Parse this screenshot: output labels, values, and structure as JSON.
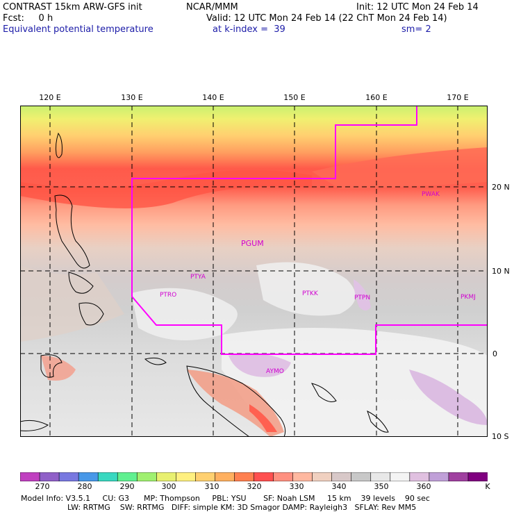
{
  "header": {
    "line1_left": "CONTRAST 15km ARW-GFS init",
    "line1_center": "NCAR/MMM",
    "line1_right": "Init: 12 UTC Mon 24 Feb 14",
    "line2_left": "Fcst:     0 h",
    "line2_right": "Valid: 12 UTC Mon 24 Feb 14 (22 ChT Mon 24 Feb 14)",
    "line3_left": "Equivalent potential temperature",
    "line3_center": "at k-index =  39",
    "line3_right": "sm= 2"
  },
  "map": {
    "longitude_labels": [
      "120 E",
      "130 E",
      "140 E",
      "150 E",
      "160 E",
      "170 E"
    ],
    "latitude_labels": [
      "20 N",
      "10 N",
      "0",
      "10 S"
    ],
    "stations": [
      "PWAK",
      "PGUM",
      "PTYA",
      "PTRO",
      "PTKK",
      "PTPN",
      "PKMJ",
      "AYMO"
    ],
    "outline_color": "#ff00ff"
  },
  "colorbar": {
    "labels": [
      "270",
      "280",
      "290",
      "300",
      "310",
      "320",
      "330",
      "340",
      "350",
      "360"
    ],
    "unit": "K",
    "colors": [
      "#c040c0",
      "#9060c8",
      "#7878e0",
      "#4898e8",
      "#38d8c0",
      "#60f090",
      "#a0f070",
      "#e8f070",
      "#fff080",
      "#ffd070",
      "#ffb060",
      "#ff8050",
      "#ff5050",
      "#ff9080",
      "#ffb8a0",
      "#f0d0c0",
      "#d8c8c8",
      "#c8c8c8",
      "#e8e8e8",
      "#f4f4f4",
      "#e0c0e0",
      "#c0a0d8",
      "#a040a0",
      "#800080"
    ]
  },
  "footer": {
    "line1": "Model Info: V3.5.1     CU: G3      MP: Thompson     PBL: YSU       SF: Noah LSM     15 km    39 levels    90 sec",
    "line2": "LW: RRTMG    SW: RRTMG   DIFF: simple KM: 3D Smagor DAMP: Rayleigh3   SFLAY: Rev MM5"
  }
}
